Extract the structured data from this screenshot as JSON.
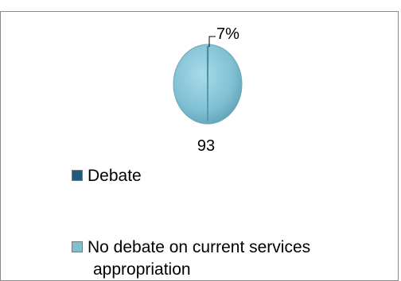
{
  "chart_data": {
    "type": "pie",
    "title": "",
    "slices": [
      {
        "label": "Debate",
        "value": 7,
        "data_label": "7%",
        "color": "#1f5b80"
      },
      {
        "label": "No debate on current services appropriation",
        "value": 93,
        "data_label": "93",
        "color": "#7fbfd2"
      }
    ],
    "legend": {
      "placement": "bottom-left",
      "entries": [
        "Debate",
        "No debate on current services",
        "appropriation"
      ]
    }
  }
}
